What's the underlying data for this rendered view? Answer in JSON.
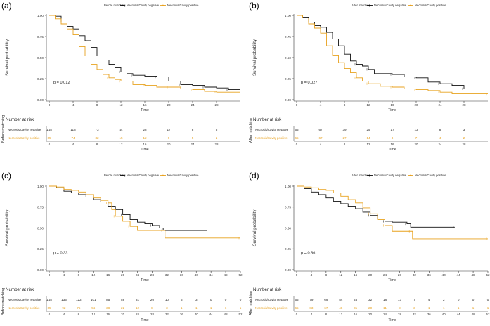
{
  "colors": {
    "negative": "#111111",
    "positive": "#e8a21f",
    "axis": "#333333",
    "grid": "#999999"
  },
  "chart_data": [
    {
      "type": "line",
      "panel_label": "(a)",
      "title_legend": "Before matching",
      "legend": [
        "Necrosis/Cavity negative",
        "Necrosis/Cavity positive"
      ],
      "ylabel": "Survival probability",
      "xlabel": "Time",
      "pvalue": "p = 0.012",
      "xlim": [
        0,
        32
      ],
      "ylim": [
        0,
        1
      ],
      "xticks": [
        0,
        4,
        8,
        12,
        16,
        20,
        24,
        28
      ],
      "yticks": [
        "0.00",
        "0.25",
        "0.50",
        "0.75",
        "1.00"
      ],
      "series": [
        {
          "name": "Necrosis/Cavity negative",
          "steps": [
            [
              0,
              1.0
            ],
            [
              1,
              0.99
            ],
            [
              2,
              0.92
            ],
            [
              3,
              0.87
            ],
            [
              4,
              0.84
            ],
            [
              5,
              0.76
            ],
            [
              6,
              0.7
            ],
            [
              7,
              0.62
            ],
            [
              8,
              0.52
            ],
            [
              9,
              0.47
            ],
            [
              10,
              0.42
            ],
            [
              11,
              0.38
            ],
            [
              12,
              0.33
            ],
            [
              13,
              0.31
            ],
            [
              14,
              0.29
            ],
            [
              16,
              0.28
            ],
            [
              18,
              0.27
            ],
            [
              20,
              0.22
            ],
            [
              22,
              0.18
            ],
            [
              24,
              0.17
            ],
            [
              26,
              0.15
            ],
            [
              28,
              0.14
            ],
            [
              30,
              0.12
            ],
            [
              32,
              0.12
            ]
          ]
        },
        {
          "name": "Necrosis/Cavity positive",
          "steps": [
            [
              0,
              1.0
            ],
            [
              1,
              0.96
            ],
            [
              2,
              0.9
            ],
            [
              3,
              0.84
            ],
            [
              4,
              0.77
            ],
            [
              5,
              0.63
            ],
            [
              6,
              0.52
            ],
            [
              7,
              0.42
            ],
            [
              8,
              0.36
            ],
            [
              9,
              0.3
            ],
            [
              10,
              0.26
            ],
            [
              11,
              0.24
            ],
            [
              12,
              0.22
            ],
            [
              14,
              0.18
            ],
            [
              16,
              0.17
            ],
            [
              18,
              0.15
            ],
            [
              20,
              0.15
            ],
            [
              22,
              0.13
            ],
            [
              24,
              0.12
            ],
            [
              26,
              0.1
            ],
            [
              28,
              0.09
            ],
            [
              32,
              0.09
            ]
          ]
        }
      ],
      "risk_table": {
        "heading": "Number at risk",
        "side_label": "Before matching",
        "xticks": [
          0,
          4,
          8,
          12,
          16,
          20,
          24,
          28
        ],
        "rows": [
          {
            "label": "Necrosis/Cavity negative",
            "values": [
              "145",
              "118",
              "73",
              "44",
              "28",
              "17",
              "8",
              "5"
            ]
          },
          {
            "label": "Necrosis/Cavity positive",
            "values": [
              "65",
              "74",
              "32",
              "15",
              "12",
              "9",
              "5",
              "2"
            ]
          }
        ],
        "xlabel": "Time"
      }
    },
    {
      "type": "line",
      "panel_label": "(b)",
      "title_legend": "After matching",
      "legend": [
        "Necrosis/Cavity negative",
        "Necrosis/Cavity positive"
      ],
      "ylabel": "Survival probability",
      "xlabel": "Time",
      "pvalue": "p = 0.027",
      "xlim": [
        0,
        32
      ],
      "ylim": [
        0,
        1
      ],
      "xticks": [
        0,
        4,
        8,
        12,
        16,
        20,
        24,
        28
      ],
      "yticks": [
        "0.00",
        "0.25",
        "0.50",
        "0.75",
        "1.00"
      ],
      "series": [
        {
          "name": "Necrosis/Cavity negative",
          "steps": [
            [
              0,
              1.0
            ],
            [
              1,
              0.98
            ],
            [
              2,
              0.92
            ],
            [
              3,
              0.88
            ],
            [
              4,
              0.86
            ],
            [
              5,
              0.8
            ],
            [
              6,
              0.72
            ],
            [
              7,
              0.64
            ],
            [
              8,
              0.54
            ],
            [
              9,
              0.46
            ],
            [
              10,
              0.42
            ],
            [
              11,
              0.4
            ],
            [
              12,
              0.36
            ],
            [
              13,
              0.31
            ],
            [
              16,
              0.3
            ],
            [
              18,
              0.27
            ],
            [
              20,
              0.26
            ],
            [
              22,
              0.21
            ],
            [
              24,
              0.19
            ],
            [
              26,
              0.17
            ],
            [
              28,
              0.13
            ],
            [
              32,
              0.13
            ]
          ]
        },
        {
          "name": "Necrosis/Cavity positive",
          "steps": [
            [
              0,
              1.0
            ],
            [
              1,
              0.97
            ],
            [
              2,
              0.9
            ],
            [
              3,
              0.85
            ],
            [
              4,
              0.79
            ],
            [
              5,
              0.64
            ],
            [
              6,
              0.53
            ],
            [
              7,
              0.44
            ],
            [
              8,
              0.37
            ],
            [
              9,
              0.32
            ],
            [
              10,
              0.26
            ],
            [
              11,
              0.22
            ],
            [
              12,
              0.19
            ],
            [
              14,
              0.16
            ],
            [
              16,
              0.15
            ],
            [
              18,
              0.13
            ],
            [
              20,
              0.12
            ],
            [
              22,
              0.11
            ],
            [
              24,
              0.09
            ],
            [
              26,
              0.07
            ],
            [
              32,
              0.07
            ]
          ]
        }
      ],
      "risk_table": {
        "heading": "Number at risk",
        "side_label": "After matching",
        "xticks": [
          0,
          4,
          8,
          12,
          16,
          20,
          24,
          28
        ],
        "rows": [
          {
            "label": "Necrosis/Cavity negative",
            "values": [
              "65",
              "67",
              "39",
              "25",
              "17",
              "13",
              "8",
              "3"
            ]
          },
          {
            "label": "Necrosis/Cavity positive",
            "values": [
              "65",
              "67",
              "27",
              "14",
              "8",
              "7",
              "4",
              "2"
            ]
          }
        ],
        "xlabel": "Time"
      }
    },
    {
      "type": "line",
      "panel_label": "(c)",
      "title_legend": "Before matching",
      "legend": [
        "Necrosis/Cavity negative",
        "Necrosis/Cavity positive"
      ],
      "ylabel": "Survival probability",
      "xlabel": "Time",
      "pvalue": "p = 0.33",
      "xlim": [
        0,
        52
      ],
      "ylim": [
        0,
        1
      ],
      "xticks": [
        0,
        4,
        8,
        12,
        16,
        20,
        24,
        28,
        32,
        36,
        40,
        44,
        48,
        52
      ],
      "yticks": [
        "0.00",
        "0.25",
        "0.50",
        "0.75",
        "1.00"
      ],
      "series": [
        {
          "name": "Necrosis/Cavity negative",
          "steps": [
            [
              0,
              1.0
            ],
            [
              2,
              0.98
            ],
            [
              4,
              0.94
            ],
            [
              6,
              0.92
            ],
            [
              8,
              0.9
            ],
            [
              10,
              0.87
            ],
            [
              12,
              0.84
            ],
            [
              14,
              0.81
            ],
            [
              16,
              0.76
            ],
            [
              18,
              0.72
            ],
            [
              20,
              0.66
            ],
            [
              22,
              0.6
            ],
            [
              24,
              0.57
            ],
            [
              26,
              0.55
            ],
            [
              28,
              0.53
            ],
            [
              30,
              0.5
            ],
            [
              31,
              0.47
            ],
            [
              43,
              0.47
            ]
          ]
        },
        {
          "name": "Necrosis/Cavity positive",
          "steps": [
            [
              0,
              1.0
            ],
            [
              2,
              0.99
            ],
            [
              4,
              0.96
            ],
            [
              6,
              0.95
            ],
            [
              8,
              0.93
            ],
            [
              10,
              0.9
            ],
            [
              12,
              0.86
            ],
            [
              14,
              0.83
            ],
            [
              16,
              0.8
            ],
            [
              17,
              0.72
            ],
            [
              18,
              0.64
            ],
            [
              20,
              0.58
            ],
            [
              22,
              0.52
            ],
            [
              24,
              0.47
            ],
            [
              31,
              0.47
            ],
            [
              31.5,
              0.38
            ],
            [
              52,
              0.38
            ]
          ]
        }
      ],
      "risk_table": {
        "heading": "Number at risk",
        "side_label": "Before matching",
        "xticks": [
          0,
          4,
          8,
          12,
          16,
          20,
          24,
          28,
          32,
          36,
          40,
          44,
          48,
          52
        ],
        "rows": [
          {
            "label": "Necrosis/Cavity negative",
            "values": [
              "145",
              "135",
              "122",
              "101",
              "85",
              "58",
              "31",
              "20",
              "10",
              "6",
              "3",
              "0",
              "0",
              "0"
            ]
          },
          {
            "label": "Necrosis/Cavity positive",
            "values": [
              "65",
              "92",
              "75",
              "56",
              "38",
              "22",
              "12",
              "8",
              "3",
              "1",
              "1",
              "1",
              "1",
              "1"
            ]
          }
        ],
        "xlabel": "Time"
      }
    },
    {
      "type": "line",
      "panel_label": "(d)",
      "title_legend": "After matching",
      "legend": [
        "Necrosis/Cavity negative",
        "Necrosis/Cavity positive"
      ],
      "ylabel": "Survival probability",
      "xlabel": "Time",
      "pvalue": "p = 0.86",
      "xlim": [
        0,
        52
      ],
      "ylim": [
        0,
        1
      ],
      "xticks": [
        0,
        4,
        8,
        12,
        16,
        20,
        24,
        28,
        32,
        36,
        40,
        44,
        48,
        52
      ],
      "yticks": [
        "0.00",
        "0.25",
        "0.50",
        "0.75",
        "1.00"
      ],
      "series": [
        {
          "name": "Necrosis/Cavity negative",
          "steps": [
            [
              0,
              1.0
            ],
            [
              2,
              0.97
            ],
            [
              4,
              0.93
            ],
            [
              6,
              0.9
            ],
            [
              8,
              0.86
            ],
            [
              10,
              0.82
            ],
            [
              12,
              0.79
            ],
            [
              14,
              0.76
            ],
            [
              16,
              0.73
            ],
            [
              18,
              0.69
            ],
            [
              20,
              0.65
            ],
            [
              22,
              0.61
            ],
            [
              24,
              0.58
            ],
            [
              26,
              0.57
            ],
            [
              30,
              0.55
            ],
            [
              31,
              0.51
            ],
            [
              43,
              0.51
            ]
          ]
        },
        {
          "name": "Necrosis/Cavity positive",
          "steps": [
            [
              0,
              1.0
            ],
            [
              2,
              0.99
            ],
            [
              4,
              0.98
            ],
            [
              6,
              0.96
            ],
            [
              8,
              0.95
            ],
            [
              10,
              0.92
            ],
            [
              12,
              0.88
            ],
            [
              14,
              0.84
            ],
            [
              16,
              0.8
            ],
            [
              18,
              0.74
            ],
            [
              20,
              0.67
            ],
            [
              22,
              0.6
            ],
            [
              24,
              0.53
            ],
            [
              26,
              0.46
            ],
            [
              31,
              0.46
            ],
            [
              31.5,
              0.37
            ],
            [
              52,
              0.37
            ]
          ]
        }
      ],
      "risk_table": {
        "heading": "Number at risk",
        "side_label": "After matching",
        "xticks": [
          0,
          4,
          8,
          12,
          16,
          20,
          24,
          28,
          32,
          36,
          40,
          44,
          48,
          52
        ],
        "rows": [
          {
            "label": "Necrosis/Cavity negative",
            "values": [
              "65",
              "79",
              "69",
              "54",
              "45",
              "32",
              "18",
              "13",
              "7",
              "4",
              "2",
              "0",
              "0",
              "0"
            ]
          },
          {
            "label": "Necrosis/Cavity positive",
            "values": [
              "65",
              "83",
              "67",
              "48",
              "31",
              "20",
              "11",
              "8",
              "3",
              "1",
              "1",
              "1",
              "1",
              "1"
            ]
          }
        ],
        "xlabel": "Time"
      }
    }
  ]
}
